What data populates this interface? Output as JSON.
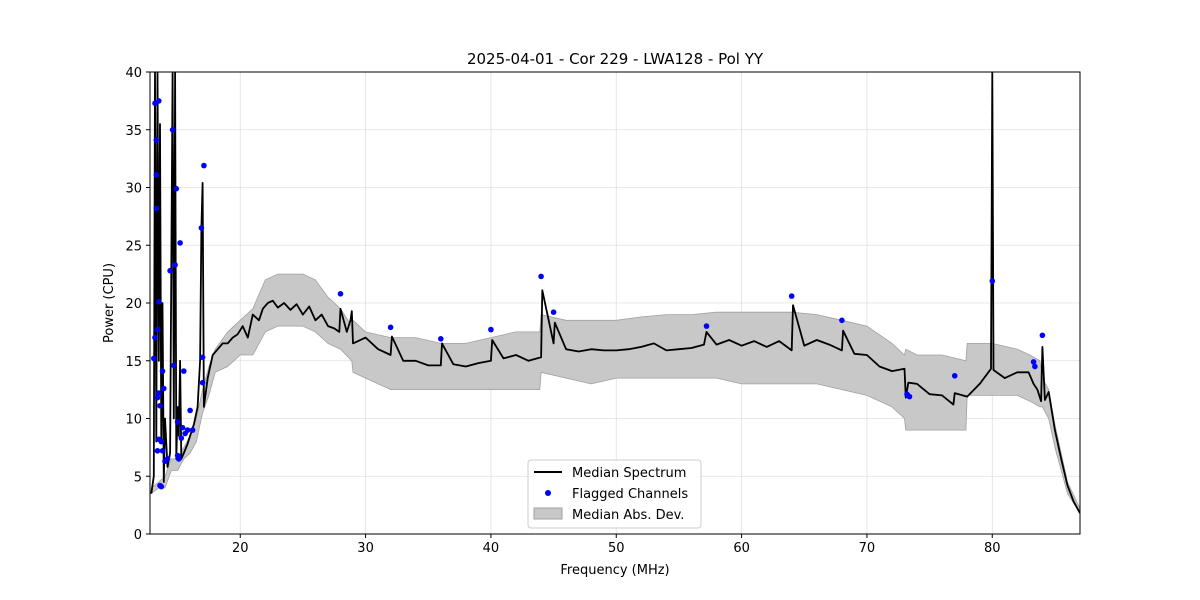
{
  "chart_data": {
    "type": "line",
    "title": "2025-04-01 - Cor 229 - LWA128 - Pol YY",
    "xlabel": "Frequency (MHz)",
    "ylabel": "Power (CPU)",
    "xlim": [
      12.8,
      87.0
    ],
    "ylim": [
      0,
      40
    ],
    "x_ticks": [
      20,
      30,
      40,
      50,
      60,
      70,
      80
    ],
    "y_ticks": [
      0,
      5,
      10,
      15,
      20,
      25,
      30,
      35,
      40
    ],
    "grid": true,
    "legend_position": "lower-center",
    "legend": [
      "Median Spectrum",
      "Flagged Channels",
      "Median Abs. Dev."
    ],
    "colors": {
      "median": "#000000",
      "flagged": "#0000ff",
      "mad_fill": "#c8c8c8",
      "mad_edge": "#a0a0a0"
    },
    "median_spectrum": {
      "x": [
        12.9,
        13.1,
        13.2,
        13.3,
        13.4,
        13.5,
        13.6,
        13.7,
        13.8,
        13.9,
        14.0,
        14.2,
        14.4,
        14.6,
        14.7,
        14.8,
        14.9,
        15.0,
        15.1,
        15.2,
        15.3,
        15.5,
        15.8,
        16.0,
        16.3,
        16.6,
        16.8,
        16.9,
        17.0,
        17.1,
        17.4,
        17.8,
        18.2,
        18.6,
        19.0,
        19.4,
        19.8,
        20.2,
        20.6,
        21.0,
        21.5,
        21.8,
        22.2,
        22.6,
        23.0,
        23.5,
        24.0,
        24.5,
        25.0,
        25.5,
        26.0,
        26.5,
        27.0,
        27.5,
        27.9,
        28.0,
        28.5,
        28.8,
        28.9,
        29.0,
        30.0,
        31.0,
        32.0,
        32.1,
        33.0,
        34.0,
        35.0,
        36.0,
        36.1,
        37.0,
        38.0,
        39.0,
        40.0,
        40.1,
        41.0,
        42.0,
        43.0,
        44.0,
        44.1,
        45.0,
        45.1,
        46.0,
        47.0,
        48.0,
        49.0,
        50.0,
        51.0,
        52.0,
        53.0,
        54.0,
        55.0,
        56.0,
        57.0,
        57.2,
        58.0,
        59.0,
        60.0,
        61.0,
        62.0,
        63.0,
        64.0,
        64.1,
        65.0,
        66.0,
        67.0,
        68.0,
        68.1,
        69.0,
        70.0,
        71.0,
        72.0,
        73.0,
        73.1,
        73.3,
        74.0,
        75.0,
        76.0,
        76.9,
        77.0,
        78.0,
        79.0,
        79.9,
        80.0,
        80.1,
        81.0,
        82.0,
        82.9,
        83.3,
        83.6,
        83.9,
        84.0,
        84.2,
        84.5,
        85.0,
        85.5,
        86.0,
        86.5,
        87.0
      ],
      "y": [
        3.5,
        5.0,
        40,
        8.0,
        40,
        15.0,
        35.5,
        8.0,
        20.0,
        4.5,
        10.0,
        5.8,
        7.0,
        40,
        10.0,
        40,
        6.5,
        11.0,
        8.5,
        15.0,
        6.5,
        7.0,
        7.8,
        8.5,
        9.5,
        11.0,
        15.0,
        26.5,
        30.4,
        11.0,
        13.5,
        15.5,
        16.0,
        16.5,
        16.5,
        17.0,
        17.3,
        18.0,
        17.0,
        19.0,
        18.5,
        19.5,
        20.0,
        20.2,
        19.6,
        20.0,
        19.4,
        19.9,
        19.0,
        19.7,
        18.5,
        19.0,
        18.0,
        17.8,
        17.5,
        19.5,
        17.5,
        18.5,
        19.3,
        16.5,
        17.0,
        16.0,
        15.5,
        17.1,
        15.0,
        15.0,
        14.6,
        14.6,
        16.5,
        14.7,
        14.5,
        14.8,
        15.0,
        16.8,
        15.2,
        15.5,
        15.0,
        15.3,
        21.1,
        16.5,
        18.3,
        16.0,
        15.8,
        16.0,
        15.9,
        15.9,
        16.0,
        16.2,
        16.5,
        15.9,
        16.0,
        16.1,
        16.4,
        17.5,
        16.4,
        16.8,
        16.3,
        16.7,
        16.2,
        16.7,
        15.9,
        19.8,
        16.3,
        16.8,
        16.4,
        15.9,
        17.6,
        15.6,
        15.5,
        14.5,
        14.1,
        14.3,
        11.8,
        13.1,
        13.0,
        12.1,
        12.0,
        11.2,
        12.2,
        11.9,
        13.0,
        14.3,
        40,
        14.2,
        13.5,
        14.0,
        14.0,
        13.0,
        12.5,
        11.5,
        16.2,
        11.6,
        12.3,
        9.0,
        6.5,
        4.2,
        2.8,
        1.8
      ]
    },
    "mad_band": {
      "x": [
        12.9,
        13.5,
        14.0,
        14.5,
        15.0,
        15.5,
        16.0,
        16.5,
        17.0,
        17.5,
        18.0,
        19.0,
        20.0,
        21.0,
        22.0,
        23.0,
        24.0,
        25.0,
        26.0,
        27.0,
        28.0,
        28.9,
        29.0,
        30.0,
        32.0,
        34.0,
        36.0,
        38.0,
        40.0,
        42.0,
        43.9,
        44.0,
        46.0,
        48.0,
        50.0,
        52.0,
        54.0,
        56.0,
        58.0,
        60.0,
        62.0,
        64.0,
        66.0,
        68.0,
        70.0,
        72.0,
        73.0,
        73.1,
        74.0,
        76.0,
        77.9,
        78.0,
        80.0,
        82.0,
        83.0,
        83.8,
        84.0,
        84.5,
        85.0,
        86.0,
        87.0
      ],
      "lower": [
        3.5,
        4.0,
        4.0,
        5.5,
        5.5,
        6.5,
        7.0,
        8.0,
        10.5,
        12.0,
        14.0,
        14.5,
        15.5,
        15.5,
        17.5,
        18.0,
        18.0,
        18.0,
        17.5,
        16.5,
        16.0,
        15.0,
        14.0,
        13.5,
        12.5,
        12.5,
        12.5,
        12.5,
        12.5,
        12.5,
        12.5,
        14.0,
        13.5,
        13.0,
        13.5,
        13.5,
        13.5,
        13.5,
        13.5,
        13.0,
        13.0,
        13.0,
        13.0,
        12.5,
        12.0,
        11.0,
        10.0,
        9.0,
        9.0,
        9.0,
        9.0,
        12.0,
        12.0,
        12.0,
        11.5,
        11.0,
        11.0,
        10.0,
        7.5,
        3.5,
        1.8
      ],
      "upper": [
        4.0,
        4.5,
        5.0,
        6.5,
        6.5,
        7.5,
        8.5,
        10.0,
        12.5,
        14.5,
        16.0,
        17.5,
        18.5,
        19.5,
        22.0,
        22.5,
        22.5,
        22.5,
        22.0,
        20.5,
        19.5,
        18.0,
        18.5,
        17.5,
        17.0,
        17.0,
        16.5,
        16.5,
        17.0,
        17.5,
        17.5,
        19.0,
        18.5,
        18.5,
        18.5,
        18.8,
        19.0,
        19.0,
        19.2,
        19.2,
        19.2,
        19.2,
        19.0,
        18.5,
        18.0,
        16.5,
        15.5,
        16.0,
        15.5,
        15.5,
        15.0,
        16.5,
        16.5,
        16.0,
        15.5,
        15.0,
        13.5,
        12.5,
        9.5,
        4.5,
        2.2
      ]
    },
    "flagged_channels": {
      "x": [
        13.1,
        13.2,
        13.2,
        13.3,
        13.3,
        13.3,
        13.4,
        13.4,
        13.4,
        13.5,
        13.5,
        13.5,
        13.5,
        13.6,
        13.6,
        13.7,
        13.7,
        13.8,
        13.8,
        13.9,
        14.0,
        14.2,
        14.4,
        14.6,
        14.7,
        14.8,
        14.9,
        15.0,
        15.0,
        15.1,
        15.2,
        15.3,
        15.4,
        15.5,
        15.6,
        15.8,
        16.0,
        16.2,
        16.9,
        17.0,
        17.1,
        17.0,
        28.0,
        32.0,
        36.0,
        40.0,
        44.0,
        45.0,
        57.2,
        64.0,
        68.0,
        73.2,
        73.4,
        77.0,
        80.0,
        83.3,
        83.4,
        84.0
      ],
      "y": [
        15.2,
        37.3,
        17.0,
        34.1,
        28.2,
        31.1,
        11.8,
        17.7,
        7.2,
        20.1,
        12.2,
        37.5,
        8.2,
        4.2,
        11.1,
        4.1,
        8.0,
        14.1,
        7.2,
        12.6,
        6.3,
        6.5,
        22.8,
        35.0,
        14.6,
        23.3,
        29.9,
        9.7,
        6.8,
        6.5,
        25.2,
        8.3,
        9.2,
        14.1,
        8.7,
        9.0,
        10.7,
        9.0,
        26.5,
        13.1,
        31.9,
        15.3,
        20.8,
        17.9,
        16.9,
        17.7,
        22.3,
        19.2,
        18.0,
        20.6,
        18.5,
        12.1,
        11.9,
        13.7,
        21.9,
        14.9,
        14.5,
        17.2
      ]
    }
  }
}
